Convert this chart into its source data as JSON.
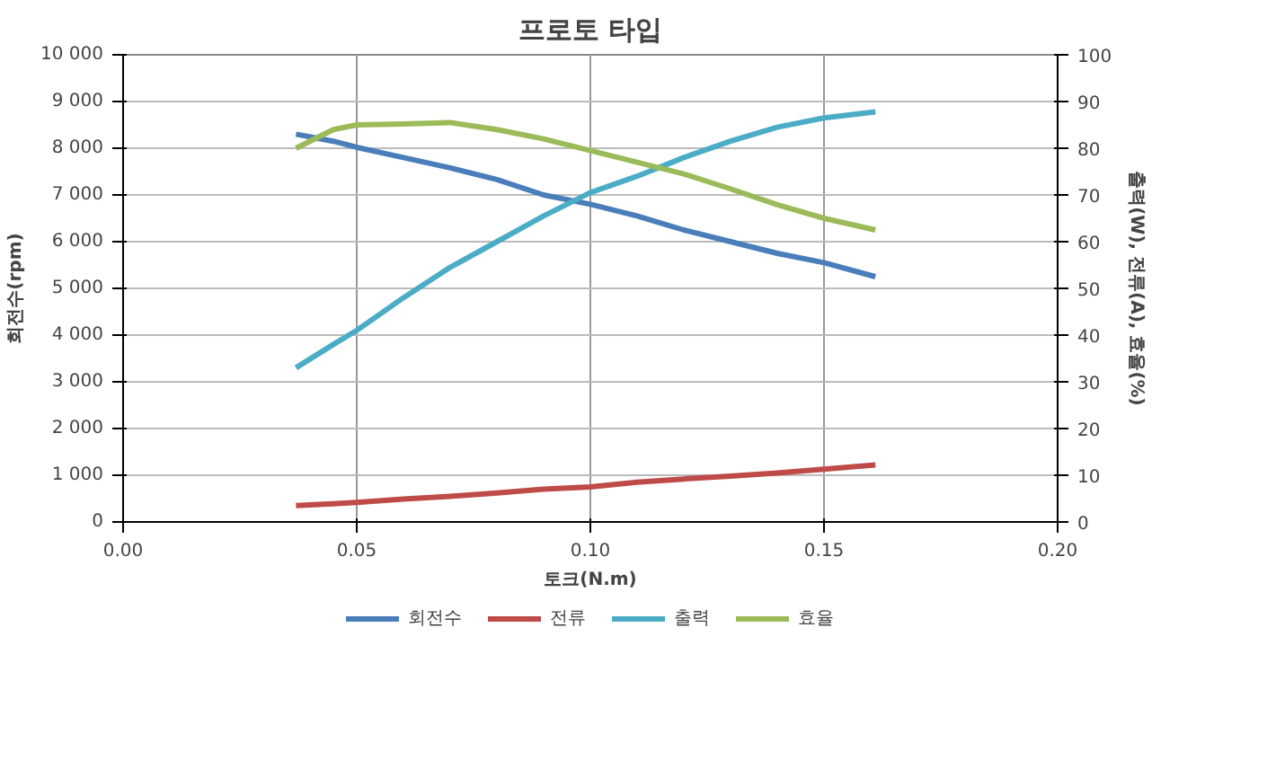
{
  "chart_data": {
    "type": "line",
    "title": "프로토 타입",
    "xlabel": "토크(N.m)",
    "ylabel": "회전수(rpm)",
    "y2label": "출력(W), 전류(A), 효율(%)",
    "x": [
      0.037,
      0.045,
      0.05,
      0.06,
      0.07,
      0.08,
      0.09,
      0.1,
      0.11,
      0.12,
      0.13,
      0.14,
      0.15,
      0.161
    ],
    "series": [
      {
        "name": "회전수",
        "color": "#4a7ebb",
        "values": [
          8300,
          8150,
          8020,
          7800,
          7580,
          7330,
          7000,
          6800,
          6550,
          6250,
          6000,
          5750,
          5550,
          5250
        ]
      },
      {
        "name": "전류",
        "color": "#be4b48",
        "axis": "y2",
        "values": [
          3.5,
          3.9,
          4.2,
          4.9,
          5.5,
          6.2,
          7,
          7.5,
          8.5,
          9.2,
          9.8,
          10.5,
          11.3,
          12.2
        ]
      },
      {
        "name": "출력",
        "color": "#4bacc6",
        "axis": "y2",
        "values": [
          33,
          38,
          41,
          48,
          54.5,
          60,
          65.5,
          70.5,
          74,
          78,
          81.5,
          84.5,
          86.5,
          87.8
        ]
      },
      {
        "name": "효율",
        "color": "#9bbb59",
        "axis": "y2",
        "values": [
          80,
          84,
          85,
          85.2,
          85.5,
          84,
          82,
          79.5,
          77,
          74.5,
          71.3,
          67.9,
          65,
          62.5
        ]
      }
    ],
    "xlim": [
      0,
      0.2
    ],
    "xticks": [
      {
        "value": 0,
        "label": "0.00"
      },
      0.05,
      {
        "value": 0.1,
        "label": "0.10"
      },
      0.15,
      {
        "value": 0.2,
        "label": "0.20"
      }
    ],
    "ylim": [
      0,
      10000
    ],
    "yticks": [
      0,
      {
        "value": 1000,
        "label": "1 000"
      },
      {
        "value": 2000,
        "label": "2 000"
      },
      {
        "value": 3000,
        "label": "3 000"
      },
      {
        "value": 4000,
        "label": "4 000"
      },
      {
        "value": 5000,
        "label": "5 000"
      },
      {
        "value": 6000,
        "label": "6 000"
      },
      {
        "value": 7000,
        "label": "7 000"
      },
      {
        "value": 8000,
        "label": "8 000"
      },
      {
        "value": 9000,
        "label": "9 000"
      },
      {
        "value": 10000,
        "label": "10 000"
      }
    ],
    "y2lim": [
      0,
      100
    ],
    "y2ticks": [
      0,
      10,
      20,
      30,
      40,
      50,
      60,
      70,
      80,
      90,
      100
    ],
    "grid": true,
    "legend": "bottom",
    "marker": "none",
    "line_style": "solid"
  }
}
